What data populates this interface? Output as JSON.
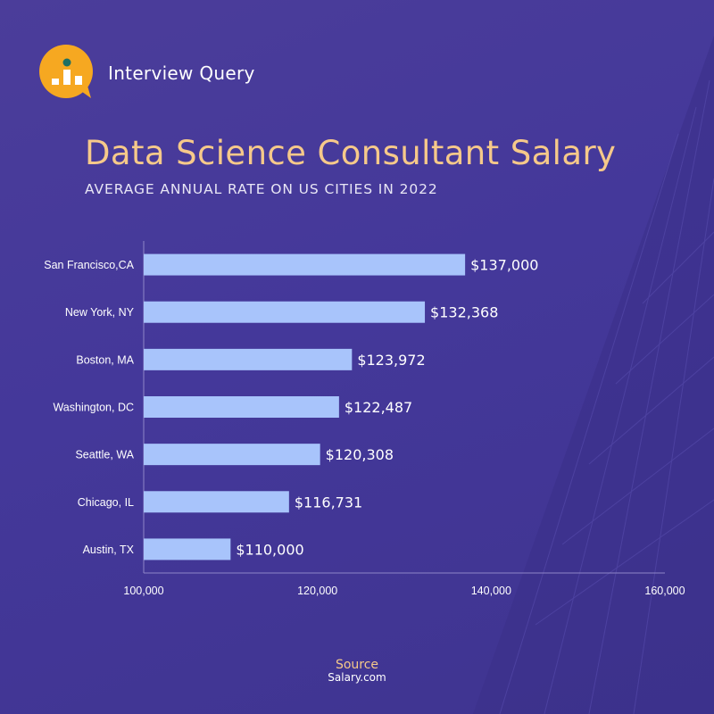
{
  "brand": {
    "name": "Interview Query",
    "logo_icon": "interview-query-logo-icon"
  },
  "colors": {
    "background": "#45399a",
    "bar": "#a8c4fb",
    "accent": "#f6c98a",
    "logo": "#f6a821",
    "logo_dot": "#1f6f63"
  },
  "source": {
    "label": "Source",
    "site": "Salary.com"
  },
  "chart_data": {
    "type": "bar",
    "orientation": "horizontal",
    "title": "Data Science Consultant Salary",
    "subtitle": "AVERAGE ANNUAL RATE ON US CITIES IN 2022",
    "categories": [
      "San Francisco,CA",
      "New York, NY",
      "Boston, MA",
      "Washington, DC",
      "Seattle, WA",
      "Chicago, IL",
      "Austin, TX"
    ],
    "values": [
      137000,
      132368,
      123972,
      122487,
      120308,
      116731,
      110000
    ],
    "value_labels": [
      "$137,000",
      "$132,368",
      "$123,972",
      "$122,487",
      "$120,308",
      "$116,731",
      "$110,000"
    ],
    "xlim": [
      100000,
      160000
    ],
    "xticks": [
      100000,
      120000,
      140000,
      160000
    ],
    "xtick_labels": [
      "100,000",
      "120,000",
      "140,000",
      "160,000"
    ],
    "xlabel": "",
    "ylabel": "",
    "grid": false,
    "legend": "none"
  }
}
